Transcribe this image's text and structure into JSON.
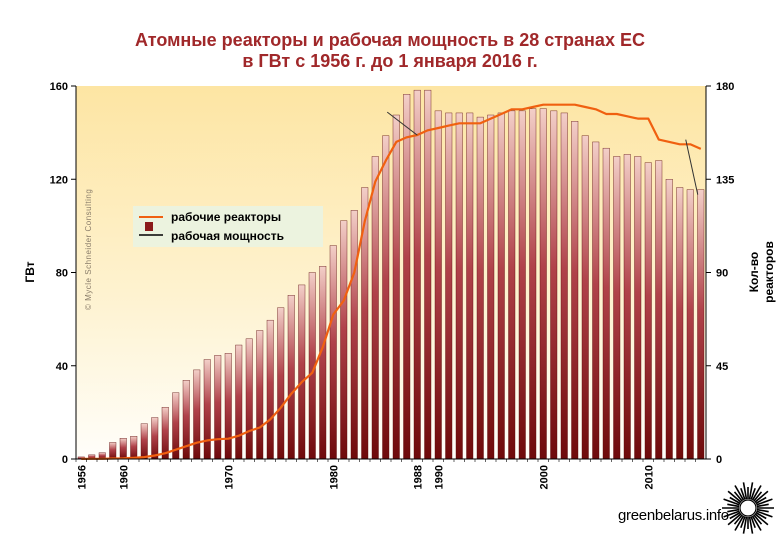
{
  "title": {
    "line1": "Атомные реакторы и рабочая мощность в 28 странах ЕС",
    "line2": "в ГВт с 1956 г. до 1 января 2016 г."
  },
  "watermark": "© Mycle Schneider Consulting",
  "brand": "greenbelarus.info",
  "legend": {
    "reactors_label": "рабочие реакторы",
    "capacity_label": "рабочая мощность",
    "placement": "upper-left inside plot"
  },
  "chart_data": {
    "type": "bar",
    "x": [
      1956,
      1957,
      1958,
      1959,
      1960,
      1961,
      1962,
      1963,
      1964,
      1965,
      1966,
      1967,
      1968,
      1969,
      1970,
      1971,
      1972,
      1973,
      1974,
      1975,
      1976,
      1977,
      1978,
      1979,
      1980,
      1981,
      1982,
      1983,
      1984,
      1985,
      1986,
      1987,
      1988,
      1989,
      1990,
      1991,
      1992,
      1993,
      1994,
      1995,
      1996,
      1997,
      1998,
      1999,
      2000,
      2001,
      2002,
      2003,
      2004,
      2005,
      2006,
      2007,
      2008,
      2009,
      2010,
      2011,
      2012,
      2013,
      2014,
      2015
    ],
    "xtick_labels": [
      "1956",
      "1960",
      "1970",
      "1980",
      "1988",
      "1990",
      "2000",
      "2010"
    ],
    "ylabel_left": "ГВт",
    "ylabel_right_line1": "Кол-во",
    "ylabel_right_line2": "реакторов",
    "ylim_left": [
      0,
      160
    ],
    "yticks_left": [
      0,
      40,
      80,
      120,
      160
    ],
    "ylim_right": [
      0,
      180
    ],
    "yticks_right": [
      0,
      45,
      90,
      135,
      180
    ],
    "series": [
      {
        "name": "рабочие реакторы",
        "axis": "right",
        "render": "bar",
        "color": "#8b1a1a",
        "values": [
          1,
          2,
          3,
          8,
          10,
          11,
          17,
          20,
          25,
          32,
          38,
          43,
          48,
          50,
          51,
          55,
          58,
          62,
          67,
          73,
          79,
          84,
          90,
          93,
          103,
          115,
          120,
          131,
          146,
          156,
          166,
          176,
          178,
          178,
          168,
          167,
          167,
          167,
          165,
          166,
          167,
          168,
          168,
          169,
          169,
          168,
          167,
          163,
          156,
          153,
          150,
          146,
          147,
          146,
          143,
          144,
          135,
          131,
          130,
          130
        ]
      },
      {
        "name": "рабочая мощность",
        "axis": "left",
        "render": "line",
        "color": "#f06010",
        "values": [
          0.05,
          0.1,
          0.1,
          0.2,
          0.3,
          0.5,
          0.8,
          1.5,
          2.5,
          4,
          5.5,
          7,
          8,
          8.5,
          8.7,
          10,
          12,
          13.5,
          17,
          22,
          28,
          33,
          37,
          48,
          62,
          68,
          80,
          102,
          119,
          128,
          136,
          138,
          139,
          141,
          142,
          143,
          144,
          144,
          144,
          146,
          148,
          150,
          150,
          151,
          152,
          152,
          152,
          152,
          151,
          150,
          148,
          148,
          147,
          146,
          146,
          137,
          136,
          135,
          135,
          133
        ]
      }
    ],
    "annotations": [
      "1988",
      "2015"
    ],
    "grid": false
  },
  "colors": {
    "title": "#a0282a",
    "bg_top": "#fdeab2",
    "bg_bottom": "#fffdf5",
    "bar_top": "#f2c9c4",
    "bar_bottom": "#7a0f0f",
    "line": "#f06010"
  }
}
